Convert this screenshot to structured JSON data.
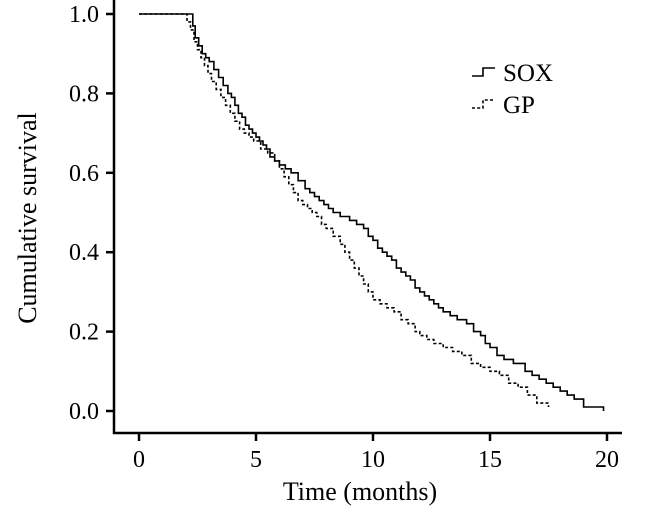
{
  "chart_data": {
    "type": "line",
    "xlabel": "Time (months)",
    "ylabel": "Cumulative survival",
    "xlim": [
      0,
      20
    ],
    "ylim": [
      0,
      1
    ],
    "xticks": [
      "0",
      "5",
      "10",
      "15",
      "20"
    ],
    "yticks": [
      "0.0",
      "0.2",
      "0.4",
      "0.6",
      "0.8",
      "1.0"
    ],
    "legend_position": "top-right",
    "grid": false,
    "series": [
      {
        "name": "SOX",
        "style": "solid",
        "color": "#000000",
        "x": [
          0,
          2.3,
          2.4,
          2.55,
          2.7,
          2.85,
          3.0,
          3.2,
          3.4,
          3.6,
          3.8,
          3.95,
          4.1,
          4.25,
          4.4,
          4.55,
          4.7,
          4.85,
          5.0,
          5.15,
          5.3,
          5.45,
          5.6,
          5.8,
          6.0,
          6.25,
          6.5,
          6.8,
          7.1,
          7.3,
          7.5,
          7.7,
          7.9,
          8.1,
          8.3,
          8.6,
          9.0,
          9.3,
          9.6,
          9.8,
          10.0,
          10.2,
          10.4,
          10.6,
          10.8,
          11.0,
          11.2,
          11.4,
          11.6,
          11.8,
          12.0,
          12.2,
          12.4,
          12.6,
          12.8,
          13.0,
          13.3,
          13.6,
          14.0,
          14.3,
          14.6,
          14.8,
          15.0,
          15.3,
          15.6,
          16.0,
          16.5,
          16.8,
          17.1,
          17.4,
          17.7,
          18.0,
          18.3,
          18.6,
          19.0,
          19.85
        ],
        "y": [
          1.0,
          0.97,
          0.94,
          0.92,
          0.9,
          0.89,
          0.88,
          0.86,
          0.84,
          0.82,
          0.8,
          0.79,
          0.77,
          0.75,
          0.74,
          0.72,
          0.71,
          0.7,
          0.69,
          0.68,
          0.67,
          0.66,
          0.64,
          0.63,
          0.62,
          0.61,
          0.6,
          0.58,
          0.56,
          0.55,
          0.54,
          0.53,
          0.52,
          0.51,
          0.5,
          0.49,
          0.48,
          0.47,
          0.46,
          0.44,
          0.43,
          0.41,
          0.4,
          0.39,
          0.38,
          0.36,
          0.35,
          0.34,
          0.33,
          0.31,
          0.3,
          0.29,
          0.28,
          0.27,
          0.26,
          0.25,
          0.24,
          0.23,
          0.22,
          0.2,
          0.19,
          0.17,
          0.16,
          0.14,
          0.13,
          0.12,
          0.1,
          0.09,
          0.08,
          0.07,
          0.06,
          0.05,
          0.04,
          0.03,
          0.01,
          0.0
        ]
      },
      {
        "name": "GP",
        "style": "dashed",
        "color": "#000000",
        "x": [
          0,
          2.05,
          2.2,
          2.35,
          2.5,
          2.65,
          2.8,
          2.95,
          3.1,
          3.3,
          3.5,
          3.7,
          3.9,
          4.1,
          4.3,
          4.5,
          4.7,
          4.9,
          5.2,
          5.5,
          5.8,
          6.0,
          6.2,
          6.4,
          6.6,
          6.8,
          7.0,
          7.2,
          7.4,
          7.6,
          7.8,
          8.0,
          8.3,
          8.6,
          8.8,
          9.0,
          9.2,
          9.4,
          9.6,
          9.8,
          10.0,
          10.3,
          10.6,
          10.9,
          11.2,
          11.5,
          11.8,
          12.0,
          12.3,
          12.6,
          13.0,
          13.4,
          13.8,
          14.2,
          14.6,
          15.0,
          15.4,
          15.8,
          16.2,
          16.6,
          17.0,
          17.5
        ],
        "y": [
          1.0,
          0.98,
          0.96,
          0.93,
          0.91,
          0.89,
          0.87,
          0.85,
          0.83,
          0.81,
          0.79,
          0.77,
          0.75,
          0.73,
          0.71,
          0.7,
          0.69,
          0.68,
          0.66,
          0.65,
          0.63,
          0.61,
          0.59,
          0.57,
          0.55,
          0.53,
          0.52,
          0.51,
          0.5,
          0.49,
          0.47,
          0.46,
          0.44,
          0.42,
          0.4,
          0.38,
          0.36,
          0.34,
          0.32,
          0.3,
          0.28,
          0.27,
          0.26,
          0.25,
          0.23,
          0.22,
          0.2,
          0.19,
          0.18,
          0.17,
          0.16,
          0.15,
          0.14,
          0.12,
          0.11,
          0.1,
          0.09,
          0.07,
          0.06,
          0.04,
          0.02,
          0.01
        ]
      }
    ]
  }
}
